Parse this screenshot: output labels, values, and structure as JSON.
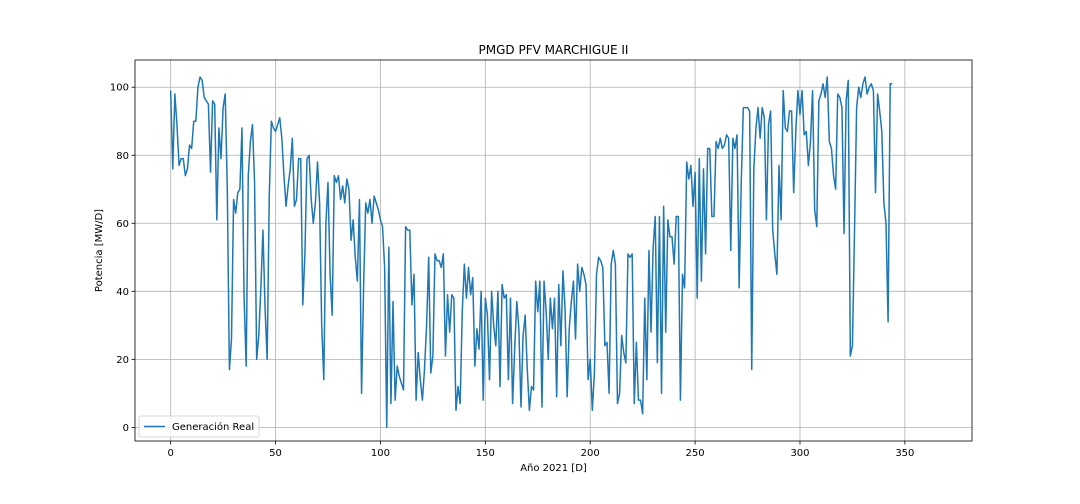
{
  "chart_data": {
    "type": "line",
    "title": "PMGD PFV MARCHIGUE II",
    "xlabel": "Año 2021 [D]",
    "ylabel": "Potencia [MW/D]",
    "xlim": [
      -17,
      382
    ],
    "ylim": [
      -4,
      108
    ],
    "xticks": [
      0,
      50,
      100,
      150,
      200,
      250,
      300,
      350
    ],
    "yticks": [
      0,
      20,
      40,
      60,
      80,
      100
    ],
    "grid": true,
    "legend": "lower-left",
    "series": [
      {
        "name": "Generación Real",
        "color": "#1f77b4",
        "values": [
          99,
          76,
          98,
          89,
          77,
          79,
          79,
          74,
          76,
          83,
          82,
          90,
          90,
          100,
          103,
          102,
          97,
          96,
          95,
          75,
          96,
          95,
          61,
          88,
          79,
          94,
          98,
          70,
          17,
          26,
          67,
          63,
          69,
          70,
          88,
          38,
          18,
          74,
          84,
          89,
          72,
          20,
          27,
          41,
          58,
          35,
          20,
          68,
          90,
          88,
          87,
          89,
          91,
          85,
          74,
          65,
          71,
          76,
          85,
          65,
          67,
          79,
          79,
          36,
          51,
          79,
          80,
          67,
          60,
          66,
          78,
          66,
          30,
          14,
          60,
          72,
          45,
          33,
          74,
          72,
          74,
          67,
          71,
          66,
          73,
          70,
          55,
          61,
          50,
          43,
          67,
          10,
          42,
          66,
          63,
          67,
          60,
          68,
          66,
          64,
          61,
          59,
          47,
          0,
          53,
          7,
          37,
          8,
          18,
          15,
          13,
          11,
          59,
          58,
          58,
          36,
          45,
          8,
          22,
          14,
          8,
          17,
          30,
          50,
          16,
          21,
          51,
          49,
          49,
          47,
          51,
          21,
          39,
          28,
          39,
          38,
          5,
          12,
          7,
          34,
          48,
          38,
          47,
          39,
          44,
          18,
          29,
          23,
          40,
          8,
          38,
          33,
          14,
          40,
          30,
          24,
          40,
          12,
          42,
          38,
          39,
          14,
          38,
          7,
          23,
          37,
          29,
          6,
          27,
          33,
          17,
          5,
          12,
          11,
          43,
          34,
          43,
          6,
          43,
          34,
          20,
          38,
          29,
          38,
          9,
          42,
          24,
          46,
          35,
          9,
          29,
          37,
          43,
          26,
          48,
          40,
          47,
          45,
          42,
          14,
          20,
          5,
          16,
          45,
          50,
          49,
          47,
          24,
          25,
          10,
          48,
          52,
          48,
          7,
          10,
          27,
          22,
          19,
          51,
          50,
          51,
          7,
          25,
          8,
          8,
          4,
          38,
          14,
          52,
          28,
          53,
          62,
          19,
          62,
          10,
          65,
          28,
          61,
          56,
          56,
          48,
          62,
          62,
          8,
          45,
          41,
          78,
          73,
          77,
          65,
          75,
          38,
          79,
          43,
          76,
          51,
          82,
          82,
          62,
          62,
          84,
          82,
          85,
          82,
          83,
          86,
          85,
          52,
          85,
          82,
          86,
          41,
          72,
          94,
          94,
          94,
          93,
          17,
          76,
          88,
          94,
          85,
          94,
          91,
          61,
          89,
          93,
          58,
          51,
          45,
          77,
          61,
          99,
          88,
          87,
          93,
          93,
          69,
          87,
          99,
          92,
          99,
          86,
          87,
          77,
          84,
          99,
          64,
          59,
          96,
          98,
          101,
          97,
          103,
          84,
          82,
          74,
          70,
          98,
          97,
          94,
          57,
          96,
          102,
          21,
          24,
          58,
          94,
          100,
          97,
          101,
          103,
          98,
          100,
          101,
          99,
          69,
          98,
          93,
          87,
          66,
          60,
          31,
          101,
          101
        ]
      }
    ]
  }
}
